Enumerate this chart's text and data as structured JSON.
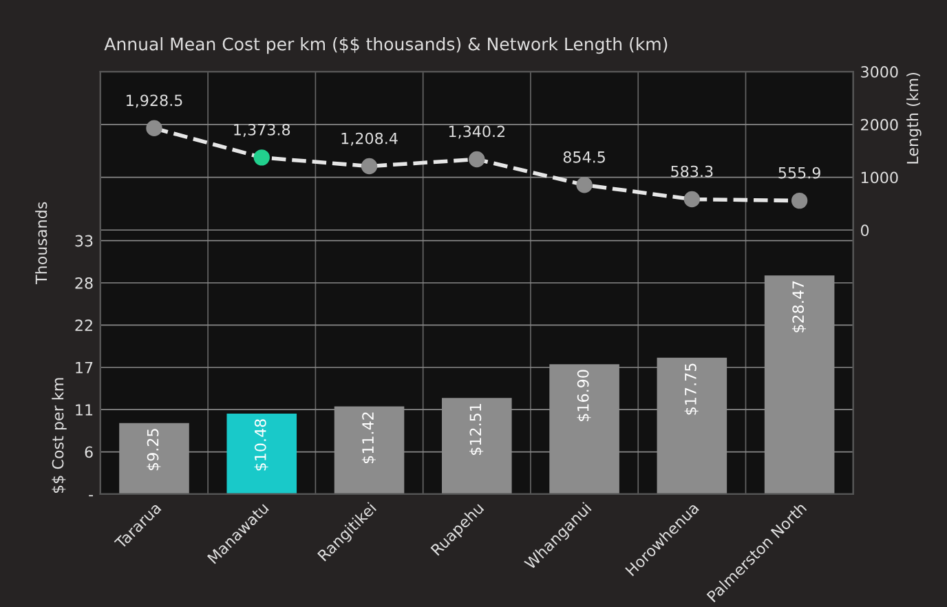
{
  "chart_data": {
    "type": "bar",
    "title": "Annual Mean Cost per km ($$ thousands) & Network Length (km)",
    "categories": [
      "Tararua",
      "Manawatu",
      "Rangitikei",
      "Ruapehu",
      "Whanganui",
      "Horowhenua",
      "Palmerston North"
    ],
    "series": [
      {
        "values": [
          9.25,
          10.48,
          11.42,
          12.51,
          16.9,
          17.75,
          28.47
        ],
        "colors": [
          "#8c8c8c",
          "#19c9c9",
          "#8c8c8c",
          "#8c8c8c",
          "#8c8c8c",
          "#8c8c8c",
          "#8c8c8c"
        ],
        "value_labels": [
          "$9.25",
          "$10.48",
          "$11.42",
          "$12.51",
          "$16.90",
          "$17.75",
          "$28.47"
        ]
      },
      {
        "type": "line",
        "axis": "y2",
        "color": "#e6e6e6",
        "line_style": "dashed",
        "marker": "circle",
        "colors": [
          "#8c8c8c",
          "#22d08e",
          "#8c8c8c",
          "#8c8c8c",
          "#8c8c8c",
          "#8c8c8c",
          "#8c8c8c"
        ],
        "values": [
          1928.5,
          1373.8,
          1208.4,
          1340.2,
          854.5,
          583.3,
          555.9
        ],
        "value_labels": [
          "1,928.5",
          "1,373.8",
          "1,208.4",
          "1,340.2",
          "854.5",
          "583.3",
          "555.9"
        ]
      }
    ],
    "ylabel": "$$ Cost per km",
    "y2label": "Length (km)",
    "annotations": [
      "Thousands"
    ],
    "ylim": [
      0,
      55
    ],
    "yticks": [
      {
        "value": 0,
        "label": "-"
      },
      {
        "value": 5.5,
        "label": "6"
      },
      11,
      {
        "value": 16.5,
        "label": "17"
      },
      22,
      {
        "value": 27.5,
        "label": "28"
      },
      33
    ],
    "y2lim": [
      -5000,
      3000
    ],
    "y2ticks": [
      0,
      1000,
      2000,
      3000
    ],
    "grid": true,
    "legend": false
  }
}
